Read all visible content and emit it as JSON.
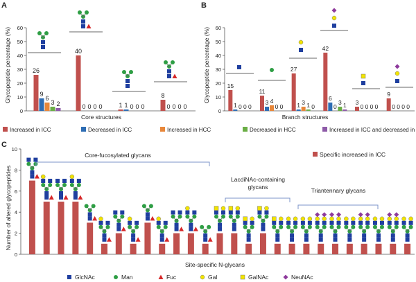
{
  "colors": {
    "inc_icc": "#C0504D",
    "dec_icc": "#2E6DB4",
    "inc_hcc": "#E8873A",
    "dec_hcc": "#6AAE45",
    "inc_icc_dec_hcc": "#8E5BA8",
    "glcnac": "#1F3F9F",
    "man": "#2E9E44",
    "fuc": "#D62728",
    "gal": "#F2E400",
    "neunac": "#8E3A9C",
    "axis": "#555555",
    "bracket": "#7B93C9"
  },
  "chart_data": [
    {
      "panel": "A",
      "type": "bar",
      "title": "",
      "xlabel": "Core structures",
      "ylabel": "Glycopeptide percentage (%)",
      "ylim": [
        0,
        60
      ],
      "yticks": [
        0,
        10,
        20,
        30,
        40,
        50,
        60
      ],
      "grid": false,
      "categories": [
        "1",
        "2",
        "3",
        "4"
      ],
      "series": [
        {
          "name": "Increased in ICC",
          "values": [
            26,
            40,
            1,
            8
          ]
        },
        {
          "name": "Decreased in ICC",
          "values": [
            9,
            0,
            1,
            0
          ]
        },
        {
          "name": "Increased in HCC",
          "values": [
            6,
            0,
            0,
            0
          ]
        },
        {
          "name": "Decreased in HCC",
          "values": [
            3,
            0,
            0,
            0
          ]
        },
        {
          "name": "Increased in ICC and decreased in HCC",
          "values": [
            2,
            0,
            0,
            0
          ]
        }
      ],
      "value_labels": [
        [
          "26",
          "9",
          "6",
          "3",
          "2"
        ],
        [
          "40",
          "0",
          "0",
          "0",
          "0"
        ],
        [
          "1",
          "1",
          "0",
          "0",
          "0"
        ],
        [
          "8",
          "0",
          "0",
          "0",
          "0"
        ]
      ]
    },
    {
      "panel": "B",
      "type": "bar",
      "title": "",
      "xlabel": "Branch structures",
      "ylabel": "Glycopeptide percentage (%)",
      "ylim": [
        0,
        60
      ],
      "yticks": [
        0,
        10,
        20,
        30,
        40,
        50,
        60
      ],
      "grid": false,
      "categories": [
        "1",
        "2",
        "3",
        "4",
        "5",
        "6"
      ],
      "series": [
        {
          "name": "Increased in ICC",
          "values": [
            15,
            11,
            27,
            42,
            3,
            9
          ]
        },
        {
          "name": "Decreased in ICC",
          "values": [
            1,
            3,
            1,
            6,
            0,
            0
          ]
        },
        {
          "name": "Increased in HCC",
          "values": [
            0,
            4,
            3,
            0,
            0,
            0
          ]
        },
        {
          "name": "Decreased in HCC",
          "values": [
            0,
            0,
            1,
            3,
            0,
            0
          ]
        },
        {
          "name": "Increased in ICC and decreased in HCC",
          "values": [
            0,
            0,
            0,
            1,
            0,
            0
          ]
        }
      ],
      "value_labels": [
        [
          "15",
          "1",
          "0",
          "0",
          "0"
        ],
        [
          "11",
          "3",
          "4",
          "0",
          "0"
        ],
        [
          "27",
          "1",
          "3",
          "1",
          "0"
        ],
        [
          "42",
          "6",
          "0",
          "3",
          "1"
        ],
        [
          "3",
          "0",
          "0",
          "0",
          "0"
        ],
        [
          "9",
          "0",
          "0",
          "0",
          "0"
        ]
      ]
    },
    {
      "panel": "C",
      "type": "bar",
      "title": "",
      "xlabel": "Site-specific N-glycans",
      "ylabel": "Number of altered glycopeptides",
      "ylim": [
        0,
        10
      ],
      "yticks": [
        0,
        2,
        4,
        6,
        8,
        10
      ],
      "grid": false,
      "series": [
        {
          "name": "Specific increased in ICC",
          "values": [
            7,
            5,
            5,
            5,
            3,
            1,
            2,
            1,
            3,
            1,
            2,
            2,
            1,
            2,
            2,
            1,
            2,
            1,
            1,
            1,
            1,
            1,
            1,
            1,
            1,
            1,
            1
          ]
        }
      ],
      "annotations": [
        "Core-fucosylated glycans",
        "LacdiNAc-containing glycans",
        "Triantennary glycans"
      ]
    }
  ],
  "panels": {
    "a": "A",
    "b": "B",
    "c": "C"
  },
  "text": {
    "ylabel_ab": "Glycopeptide percentage (%)",
    "ylabel_c": "Number of altered glycopeptides",
    "xlabel_a": "Core structures",
    "xlabel_b": "Branch structures",
    "xlabel_c": "Site-specific N-glycans",
    "bracket_core": "Core-fucosylated  glycans",
    "bracket_lacdi_1": "LacdiNAc-containing",
    "bracket_lacdi_2": "glycans",
    "bracket_tri": "Triantennary glycans",
    "legend_c": "Specific increased in ICC"
  },
  "legend_ab": [
    "Increased in ICC",
    "Decreased in ICC",
    "Increased in HCC",
    "Decreased in HCC",
    "Increased in ICC and decreased in HCC"
  ],
  "legend_mono": [
    {
      "icon": "glcnac-square-icon",
      "label": "GlcNAc"
    },
    {
      "icon": "man-circle-icon",
      "label": "Man"
    },
    {
      "icon": "fuc-triangle-icon",
      "label": "Fuc"
    },
    {
      "icon": "gal-circle-icon",
      "label": "Gal"
    },
    {
      "icon": "galnac-square-icon",
      "label": "GalNAc"
    },
    {
      "icon": "neunac-diamond-icon",
      "label": "NeuNAc"
    }
  ]
}
